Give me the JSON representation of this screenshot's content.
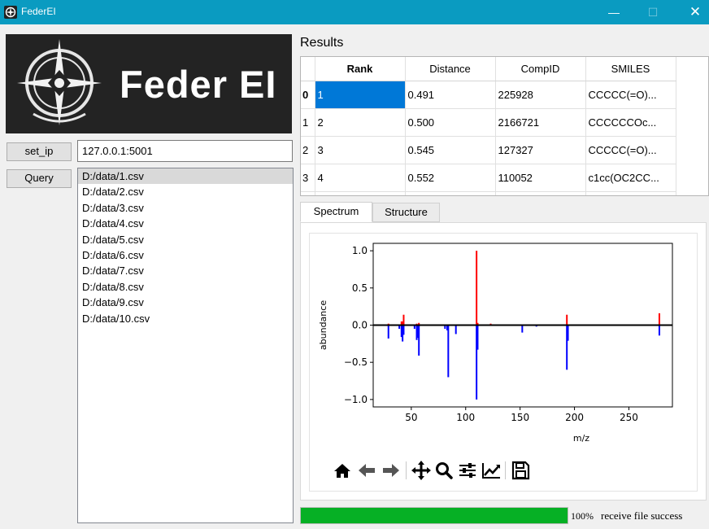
{
  "window": {
    "title": "FederEI",
    "icon": "federei-logo-icon",
    "controls": {
      "minimize": "—",
      "maximize": "☐",
      "close": "✕"
    }
  },
  "logo": {
    "text": "Feder EI",
    "icon": "compass-logo-icon"
  },
  "connection": {
    "set_ip_label": "set_ip",
    "ip_value": "127.0.0.1:5001"
  },
  "query": {
    "label": "Query",
    "files": [
      "D:/data/1.csv",
      "D:/data/2.csv",
      "D:/data/3.csv",
      "D:/data/4.csv",
      "D:/data/5.csv",
      "D:/data/6.csv",
      "D:/data/7.csv",
      "D:/data/8.csv",
      "D:/data/9.csv",
      "D:/data/10.csv"
    ],
    "selected_index": 0
  },
  "results": {
    "label": "Results",
    "columns": [
      "Rank",
      "Distance",
      "CompID",
      "SMILES"
    ],
    "rows": [
      {
        "index": "0",
        "rank": "1",
        "distance": "0.491",
        "compid": "225928",
        "smiles": "CCCCC(=O)..."
      },
      {
        "index": "1",
        "rank": "2",
        "distance": "0.500",
        "compid": "2166721",
        "smiles": "CCCCCCOc..."
      },
      {
        "index": "2",
        "rank": "3",
        "distance": "0.545",
        "compid": "127327",
        "smiles": "CCCCC(=O)..."
      },
      {
        "index": "3",
        "rank": "4",
        "distance": "0.552",
        "compid": "110052",
        "smiles": "c1cc(OC2CC..."
      }
    ]
  },
  "tabs": {
    "spectrum": "Spectrum",
    "structure": "Structure",
    "active": "spectrum"
  },
  "chart_data": {
    "type": "bar",
    "xlabel": "m/z",
    "ylabel": "abundance",
    "xlim": [
      15,
      290
    ],
    "ylim": [
      -1.1,
      1.1
    ],
    "xticks": [
      50,
      100,
      150,
      200,
      250
    ],
    "yticks": [
      -1.0,
      -0.5,
      0.0,
      0.5,
      1.0
    ],
    "ytick_labels": [
      "−1.0",
      "−0.5",
      "0.0",
      "0.5",
      "1.0"
    ],
    "grid": false,
    "series": [
      {
        "color": "#ff0000",
        "points": [
          [
            29,
            0.02
          ],
          [
            41,
            0.05
          ],
          [
            42,
            0.05
          ],
          [
            43,
            0.14
          ],
          [
            55,
            0.02
          ],
          [
            57,
            0.03
          ],
          [
            110,
            1.0
          ],
          [
            111,
            0.03
          ],
          [
            123,
            0.02
          ],
          [
            193,
            0.14
          ],
          [
            278,
            0.16
          ]
        ]
      },
      {
        "color": "#0000ff",
        "points": [
          [
            29,
            -0.18
          ],
          [
            39,
            -0.05
          ],
          [
            41,
            -0.16
          ],
          [
            42,
            -0.22
          ],
          [
            43,
            -0.13
          ],
          [
            53,
            -0.05
          ],
          [
            55,
            -0.2
          ],
          [
            56,
            -0.17
          ],
          [
            57,
            -0.41
          ],
          [
            81,
            -0.05
          ],
          [
            83,
            -0.07
          ],
          [
            84,
            -0.7
          ],
          [
            91,
            -0.12
          ],
          [
            110,
            -1.0
          ],
          [
            111,
            -0.33
          ],
          [
            152,
            -0.1
          ],
          [
            165,
            -0.02
          ],
          [
            193,
            -0.6
          ],
          [
            194,
            -0.21
          ],
          [
            278,
            -0.14
          ]
        ]
      }
    ]
  },
  "toolbar": [
    "home-icon",
    "back-icon",
    "forward-icon",
    "pan-icon",
    "zoom-icon",
    "configure-icon",
    "edit-curve-icon",
    "save-icon"
  ],
  "status": {
    "progress": 100,
    "percent_label": "100%",
    "message": "receive file success"
  }
}
